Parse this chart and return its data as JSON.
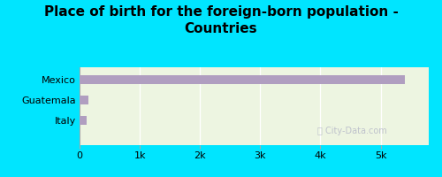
{
  "title": "Place of birth for the foreign-born population -\nCountries",
  "categories": [
    "Italy",
    "Guatemala",
    "Mexico"
  ],
  "values": [
    120,
    150,
    5400
  ],
  "bar_color": "#b09ec0",
  "background_outer": "#00e5ff",
  "background_inner": "#edf5e1",
  "xlim": [
    0,
    5800
  ],
  "xticks": [
    0,
    1000,
    2000,
    3000,
    4000,
    5000
  ],
  "xticklabels": [
    "0",
    "1k",
    "2k",
    "3k",
    "4k",
    "5k"
  ],
  "bar_height": 0.45,
  "watermark": "ⓘ City-Data.com",
  "title_fontsize": 11,
  "tick_fontsize": 8,
  "label_fontsize": 8
}
